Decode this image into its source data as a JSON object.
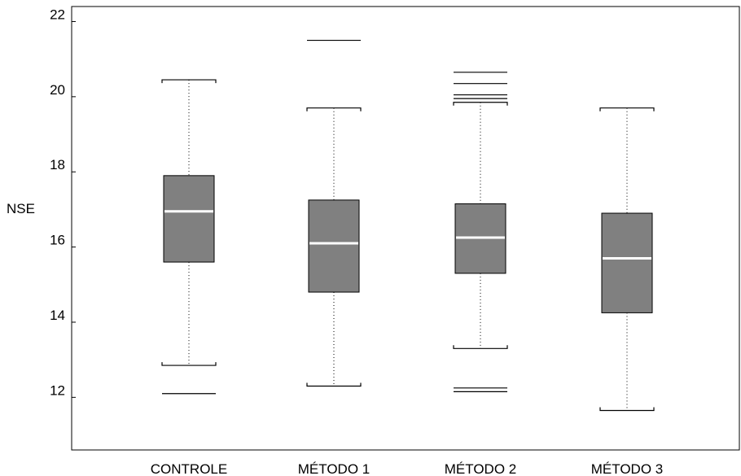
{
  "chart_data": {
    "type": "boxplot",
    "ylabel": "NSE",
    "xlabel": "",
    "ylim": [
      10.6,
      22.4
    ],
    "yticks": [
      12,
      14,
      16,
      18,
      20,
      22
    ],
    "grid": false,
    "box_fill": "#808080",
    "median_color": "#ffffff",
    "categories": [
      "CONTROLE",
      "MÉTODO 1",
      "MÉTODO 2",
      "MÉTODO 3"
    ],
    "series": [
      {
        "category": "CONTROLE",
        "whisker_low": 12.85,
        "q1": 15.6,
        "median": 16.95,
        "q3": 17.9,
        "whisker_high": 20.45,
        "outliers": [
          12.1
        ]
      },
      {
        "category": "MÉTODO 1",
        "whisker_low": 12.3,
        "q1": 14.8,
        "median": 16.1,
        "q3": 17.25,
        "whisker_high": 19.7,
        "outliers": [
          21.5
        ]
      },
      {
        "category": "MÉTODO 2",
        "whisker_low": 13.3,
        "q1": 15.3,
        "median": 16.25,
        "q3": 17.15,
        "whisker_high": 19.85,
        "outliers": [
          12.15,
          12.25,
          19.95,
          20.05,
          20.35,
          20.65
        ]
      },
      {
        "category": "MÉTODO 3",
        "whisker_low": 11.65,
        "q1": 14.25,
        "median": 15.7,
        "q3": 16.9,
        "whisker_high": 19.7,
        "outliers": []
      }
    ]
  }
}
